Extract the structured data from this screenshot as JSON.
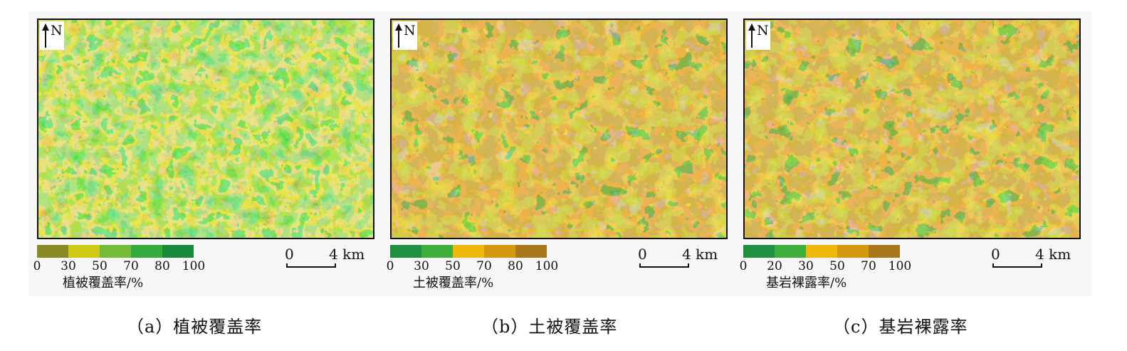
{
  "panels": [
    {
      "north_label": "N",
      "legend": {
        "colors": [
          "#8a8a25",
          "#cfc814",
          "#72bc38",
          "#35ac3e",
          "#188a3a"
        ],
        "ticks": [
          "0",
          "30",
          "50",
          "70",
          "80",
          "100"
        ],
        "title": "植被覆盖率/%"
      },
      "scale": {
        "zero": "0",
        "four": "4 km"
      },
      "caption": "（a）植被覆盖率"
    },
    {
      "north_label": "N",
      "legend": {
        "colors": [
          "#1e9140",
          "#3fb03e",
          "#f0b80a",
          "#d39a10",
          "#a9761a"
        ],
        "ticks": [
          "0",
          "30",
          "50",
          "70",
          "80",
          "100"
        ],
        "title": "土被覆盖率/%"
      },
      "scale": {
        "zero": "0",
        "four": "4 km"
      },
      "caption": "（b）土被覆盖率"
    },
    {
      "north_label": "N",
      "legend": {
        "colors": [
          "#1e9140",
          "#3fb03e",
          "#f0b80a",
          "#d39a10",
          "#a9761a"
        ],
        "ticks": [
          "0",
          "20",
          "30",
          "50",
          "70",
          "100"
        ],
        "title": "基岩裸露率/%"
      },
      "scale": {
        "zero": "0",
        "four": "4 km"
      },
      "caption": "（c）基岩裸露率"
    }
  ]
}
